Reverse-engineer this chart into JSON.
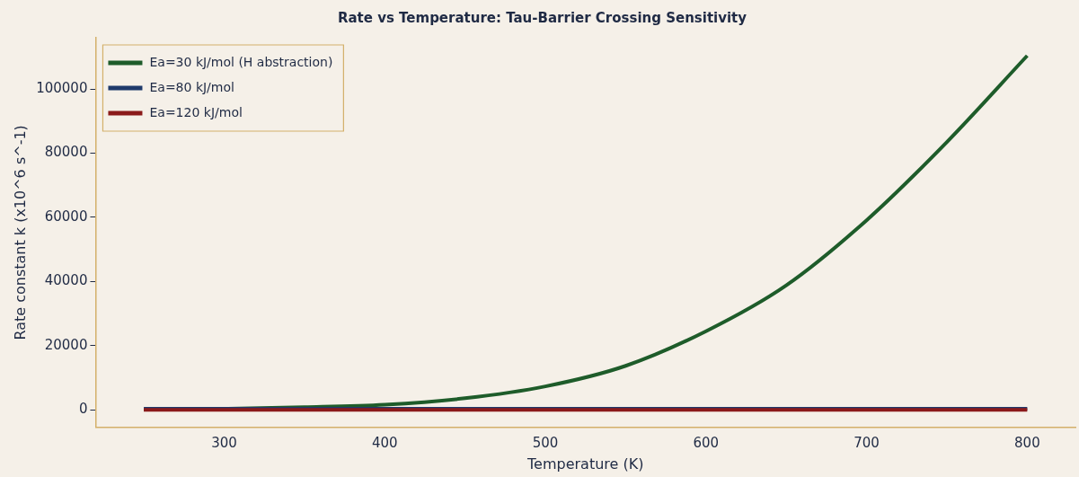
{
  "chart_data": {
    "type": "line",
    "title": "Rate vs Temperature: Tau-Barrier Crossing Sensitivity",
    "xlabel": "Temperature (K)",
    "ylabel": "Rate constant k (x10^6 s^-1)",
    "xlim": [
      220,
      830
    ],
    "xticks": [
      300,
      400,
      500,
      600,
      700,
      800
    ],
    "ylim": [
      -5500,
      116000
    ],
    "yticks": [
      0,
      20000,
      40000,
      60000,
      80000,
      100000
    ],
    "grid": false,
    "legend": "top left",
    "marker": "none",
    "line_style": "solid",
    "series": [
      {
        "name": "Ea=30 kJ/mol (H abstraction)",
        "color": "#1e5c2a",
        "x": [
          250,
          300,
          350,
          400,
          450,
          500,
          550,
          600,
          650,
          700,
          750,
          800
        ],
        "values": [
          100,
          300,
          800,
          1600,
          3600,
          7300,
          13700,
          24500,
          38800,
          59100,
          83500,
          110400
        ]
      },
      {
        "name": "Ea=80 kJ/mol",
        "color": "#1f3a6b",
        "x": [
          250,
          800
        ],
        "values": [
          300,
          300
        ]
      },
      {
        "name": "Ea=120 kJ/mol",
        "color": "#8b1a1a",
        "x": [
          250,
          800
        ],
        "values": [
          0,
          0
        ]
      }
    ]
  }
}
